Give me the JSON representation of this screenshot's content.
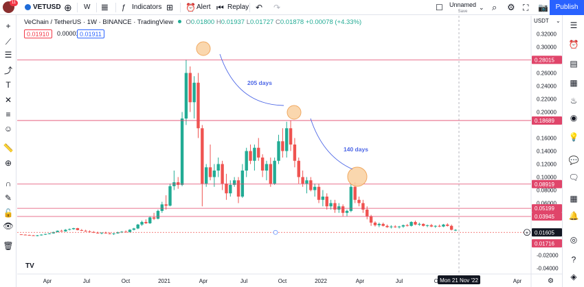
{
  "toolbar": {
    "notification_count": "11",
    "symbol": "VETUSD",
    "interval": "W",
    "indicators_label": "Indicators",
    "alert_label": "Alert",
    "replay_label": "Replay",
    "layout_name": "Unnamed",
    "save_label": "Save",
    "publish_label": "Publish"
  },
  "legend": {
    "title": "VeChain / TetherUS · 1W · BINANCE · TradingView",
    "o_label": "O",
    "o_value": "0.01800",
    "h_label": "H",
    "h_value": "0.01937",
    "l_label": "L",
    "l_value": "0.01727",
    "c_label": "C",
    "c_value": "0.01878",
    "change": "+0.00078 (+4.33%)"
  },
  "quote": {
    "sell": "0.01910",
    "spread": "0.00001",
    "buy": "0.01911"
  },
  "annotations": {
    "arc1_label": "205 days",
    "arc2_label": "140 days"
  },
  "crosshair": {
    "time_label": "Mon 21 Nov '22"
  },
  "colors": {
    "up": "#22ab94",
    "down": "#ef5350",
    "level_line": "#e0456a",
    "level_label_bg": "#e0456a",
    "circle_fill": "#f9d0a0",
    "circle_stroke": "#f0a860",
    "arc": "#4c66e6",
    "current_price_bg": "#131722"
  },
  "icons": {
    "left_toolbar": [
      "crosshair-icon",
      "trend-line-icon",
      "horizontal-line-icon",
      "pitchfork-icon",
      "brush-icon",
      "text-icon",
      "pattern-icon",
      "measure-icon",
      "emoji-icon",
      "ruler-icon",
      "zoom-icon",
      "magnet-icon",
      "lock-icon",
      "eye-icon",
      "trash-icon"
    ],
    "right_toolbar": [
      "watchlist-icon",
      "alerts-clock-icon",
      "data-window-icon",
      "calendar-icon",
      "ideas-icon",
      "streams-icon",
      "hotlist-icon",
      "lightbulb-icon",
      "chat-icon",
      "calendar-grid-icon",
      "notifications-icon",
      "bell-icon",
      "help-icon",
      "layers-icon"
    ]
  },
  "chart_data": {
    "type": "candlestick",
    "title": "VeChain / TetherUS · 1W · BINANCE",
    "xlabel": "",
    "ylabel": "USDT",
    "ylim": [
      -0.045,
      0.33
    ],
    "y_ticks": [
      "0.32000",
      "0.30000",
      "0.26000",
      "0.24000",
      "0.22000",
      "0.20000",
      "0.16000",
      "0.14000",
      "0.12000",
      "0.10000",
      "0.08000",
      "0.06000",
      "-0.02000",
      "-0.04000"
    ],
    "x_ticks": [
      "Apr",
      "Jul",
      "Oct",
      "2021",
      "Apr",
      "Jul",
      "Oct",
      "2022",
      "Apr",
      "Jul",
      "Oct",
      "Apr"
    ],
    "horizontal_levels": [
      {
        "label": "0.28015",
        "value": 0.28015
      },
      {
        "label": "0.18689",
        "value": 0.18689
      },
      {
        "label": "0.08919",
        "value": 0.08919
      },
      {
        "label": "0.05199",
        "value": 0.05199
      },
      {
        "label": "0.03945",
        "value": 0.03945
      }
    ],
    "current_price": {
      "label": "0.01605",
      "value": 0.01605
    },
    "low_marker": {
      "label": "0.01716",
      "value": 0.01716
    },
    "candles": [
      [
        0.012,
        0.012,
        0.011,
        0.0115
      ],
      [
        0.0115,
        0.012,
        0.011,
        0.011
      ],
      [
        0.011,
        0.0115,
        0.0105,
        0.0105
      ],
      [
        0.0105,
        0.011,
        0.0095,
        0.0095
      ],
      [
        0.0095,
        0.011,
        0.009,
        0.0105
      ],
      [
        0.0105,
        0.012,
        0.01,
        0.0115
      ],
      [
        0.0115,
        0.013,
        0.011,
        0.0125
      ],
      [
        0.0125,
        0.014,
        0.012,
        0.0135
      ],
      [
        0.0135,
        0.016,
        0.013,
        0.0155
      ],
      [
        0.0155,
        0.018,
        0.015,
        0.0175
      ],
      [
        0.0175,
        0.019,
        0.016,
        0.0165
      ],
      [
        0.0165,
        0.02,
        0.016,
        0.019
      ],
      [
        0.019,
        0.021,
        0.018,
        0.02
      ],
      [
        0.02,
        0.022,
        0.019,
        0.0215
      ],
      [
        0.0215,
        0.022,
        0.018,
        0.0185
      ],
      [
        0.0185,
        0.02,
        0.017,
        0.0175
      ],
      [
        0.0175,
        0.019,
        0.016,
        0.0165
      ],
      [
        0.0165,
        0.018,
        0.015,
        0.0155
      ],
      [
        0.0155,
        0.017,
        0.014,
        0.0145
      ],
      [
        0.0145,
        0.016,
        0.013,
        0.0135
      ],
      [
        0.0135,
        0.015,
        0.012,
        0.0145
      ],
      [
        0.0145,
        0.016,
        0.013,
        0.0135
      ],
      [
        0.0135,
        0.015,
        0.012,
        0.0125
      ],
      [
        0.0125,
        0.014,
        0.011,
        0.0135
      ],
      [
        0.0135,
        0.016,
        0.013,
        0.015
      ],
      [
        0.015,
        0.017,
        0.014,
        0.016
      ],
      [
        0.016,
        0.018,
        0.015,
        0.0155
      ],
      [
        0.0155,
        0.02,
        0.015,
        0.019
      ],
      [
        0.019,
        0.022,
        0.018,
        0.021
      ],
      [
        0.021,
        0.028,
        0.02,
        0.027
      ],
      [
        0.027,
        0.033,
        0.025,
        0.031
      ],
      [
        0.031,
        0.035,
        0.028,
        0.029
      ],
      [
        0.029,
        0.04,
        0.028,
        0.038
      ],
      [
        0.038,
        0.045,
        0.034,
        0.036
      ],
      [
        0.036,
        0.05,
        0.035,
        0.048
      ],
      [
        0.048,
        0.062,
        0.045,
        0.058
      ],
      [
        0.058,
        0.072,
        0.05,
        0.056
      ],
      [
        0.056,
        0.09,
        0.055,
        0.086
      ],
      [
        0.086,
        0.11,
        0.08,
        0.092
      ],
      [
        0.092,
        0.1,
        0.082,
        0.088
      ],
      [
        0.088,
        0.2,
        0.086,
        0.19
      ],
      [
        0.19,
        0.28,
        0.18,
        0.26
      ],
      [
        0.26,
        0.27,
        0.2,
        0.215
      ],
      [
        0.215,
        0.255,
        0.19,
        0.245
      ],
      [
        0.245,
        0.26,
        0.16,
        0.175
      ],
      [
        0.175,
        0.18,
        0.055,
        0.09
      ],
      [
        0.09,
        0.12,
        0.085,
        0.115
      ],
      [
        0.115,
        0.15,
        0.095,
        0.1
      ],
      [
        0.1,
        0.12,
        0.085,
        0.11
      ],
      [
        0.11,
        0.13,
        0.1,
        0.12
      ],
      [
        0.12,
        0.125,
        0.08,
        0.09
      ],
      [
        0.09,
        0.105,
        0.065,
        0.075
      ],
      [
        0.075,
        0.095,
        0.07,
        0.088
      ],
      [
        0.088,
        0.1,
        0.085,
        0.095
      ],
      [
        0.095,
        0.1,
        0.06,
        0.07
      ],
      [
        0.07,
        0.12,
        0.068,
        0.11
      ],
      [
        0.11,
        0.145,
        0.1,
        0.14
      ],
      [
        0.14,
        0.15,
        0.12,
        0.125
      ],
      [
        0.125,
        0.15,
        0.11,
        0.145
      ],
      [
        0.145,
        0.16,
        0.125,
        0.13
      ],
      [
        0.13,
        0.135,
        0.1,
        0.11
      ],
      [
        0.11,
        0.125,
        0.095,
        0.12
      ],
      [
        0.12,
        0.13,
        0.085,
        0.09
      ],
      [
        0.09,
        0.13,
        0.088,
        0.125
      ],
      [
        0.125,
        0.165,
        0.12,
        0.155
      ],
      [
        0.155,
        0.175,
        0.13,
        0.14
      ],
      [
        0.14,
        0.185,
        0.13,
        0.175
      ],
      [
        0.175,
        0.187,
        0.14,
        0.15
      ],
      [
        0.15,
        0.16,
        0.115,
        0.125
      ],
      [
        0.125,
        0.13,
        0.09,
        0.1
      ],
      [
        0.1,
        0.11,
        0.085,
        0.09
      ],
      [
        0.09,
        0.1,
        0.075,
        0.095
      ],
      [
        0.095,
        0.1,
        0.078,
        0.08
      ],
      [
        0.08,
        0.09,
        0.07,
        0.085
      ],
      [
        0.085,
        0.09,
        0.06,
        0.065
      ],
      [
        0.065,
        0.08,
        0.055,
        0.07
      ],
      [
        0.07,
        0.075,
        0.05,
        0.055
      ],
      [
        0.055,
        0.065,
        0.05,
        0.06
      ],
      [
        0.06,
        0.065,
        0.045,
        0.05
      ],
      [
        0.05,
        0.06,
        0.045,
        0.055
      ],
      [
        0.055,
        0.058,
        0.04,
        0.045
      ],
      [
        0.045,
        0.05,
        0.04,
        0.048
      ],
      [
        0.048,
        0.09,
        0.046,
        0.085
      ],
      [
        0.085,
        0.092,
        0.06,
        0.065
      ],
      [
        0.065,
        0.07,
        0.055,
        0.06
      ],
      [
        0.06,
        0.065,
        0.045,
        0.05
      ],
      [
        0.05,
        0.055,
        0.035,
        0.04
      ],
      [
        0.04,
        0.042,
        0.025,
        0.03
      ],
      [
        0.03,
        0.032,
        0.024,
        0.026
      ],
      [
        0.026,
        0.03,
        0.023,
        0.028
      ],
      [
        0.028,
        0.03,
        0.024,
        0.025
      ],
      [
        0.025,
        0.027,
        0.022,
        0.023
      ],
      [
        0.023,
        0.026,
        0.021,
        0.024
      ],
      [
        0.024,
        0.026,
        0.022,
        0.023
      ],
      [
        0.023,
        0.025,
        0.021,
        0.024
      ],
      [
        0.024,
        0.027,
        0.022,
        0.026
      ],
      [
        0.026,
        0.028,
        0.024,
        0.025
      ],
      [
        0.025,
        0.032,
        0.024,
        0.031
      ],
      [
        0.031,
        0.033,
        0.026,
        0.027
      ],
      [
        0.027,
        0.03,
        0.025,
        0.028
      ],
      [
        0.028,
        0.029,
        0.024,
        0.025
      ],
      [
        0.025,
        0.027,
        0.023,
        0.026
      ],
      [
        0.026,
        0.028,
        0.023,
        0.024
      ],
      [
        0.024,
        0.026,
        0.022,
        0.025
      ],
      [
        0.025,
        0.027,
        0.023,
        0.024
      ],
      [
        0.024,
        0.028,
        0.023,
        0.027
      ],
      [
        0.027,
        0.029,
        0.024,
        0.025
      ],
      [
        0.025,
        0.027,
        0.018,
        0.019
      ],
      [
        0.018,
        0.02,
        0.017,
        0.0188
      ]
    ]
  }
}
